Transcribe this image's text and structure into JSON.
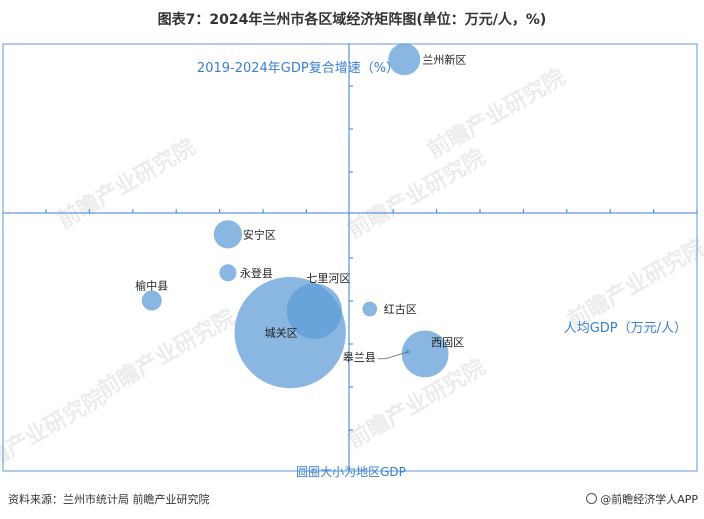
{
  "title": "图表7：2024年兰州市各区域经济矩阵图(单位：万元/人，%)",
  "source": "资料来源：兰州市统计局 前瞻产业研究院",
  "brand": "@前瞻经济学人APP",
  "watermark": "前瞻产业研究院",
  "colors": {
    "bubble": "#5b9bd5",
    "axis": "#3a7fd0",
    "frame": "#5b9bd5"
  },
  "chart_data": {
    "type": "scatter",
    "title": "图表7：2024年兰州市各区域经济矩阵图(单位：万元/人，%)",
    "xlabel": "人均GDP（万元/人）",
    "ylabel": "2019-2024年GDP复合增速（%）",
    "size_label": "圆圈大小为地区GDP",
    "grid": false,
    "note": "axes without tick values; values are relative positions with 0 at the quadrant cross",
    "xlim": [
      -10,
      10
    ],
    "ylim": [
      -10,
      10
    ],
    "points": [
      {
        "name": "兰州新区",
        "x": 1.6,
        "y": 7.2,
        "size": 140
      },
      {
        "name": "安宁区",
        "x": -3.5,
        "y": -1.0,
        "size": 110
      },
      {
        "name": "永登县",
        "x": -3.5,
        "y": -2.8,
        "size": 40
      },
      {
        "name": "榆中县",
        "x": -5.7,
        "y": -4.1,
        "size": 55
      },
      {
        "name": "七里河区",
        "x": -1.0,
        "y": -4.6,
        "size": 420
      },
      {
        "name": "红古区",
        "x": 0.6,
        "y": -4.5,
        "size": 30
      },
      {
        "name": "城关区",
        "x": -1.7,
        "y": -5.6,
        "size": 1700
      },
      {
        "name": "西固区",
        "x": 2.2,
        "y": -6.6,
        "size": 300
      },
      {
        "name": "皋兰县",
        "x": 1.7,
        "y": -6.5,
        "size": 3
      }
    ]
  }
}
